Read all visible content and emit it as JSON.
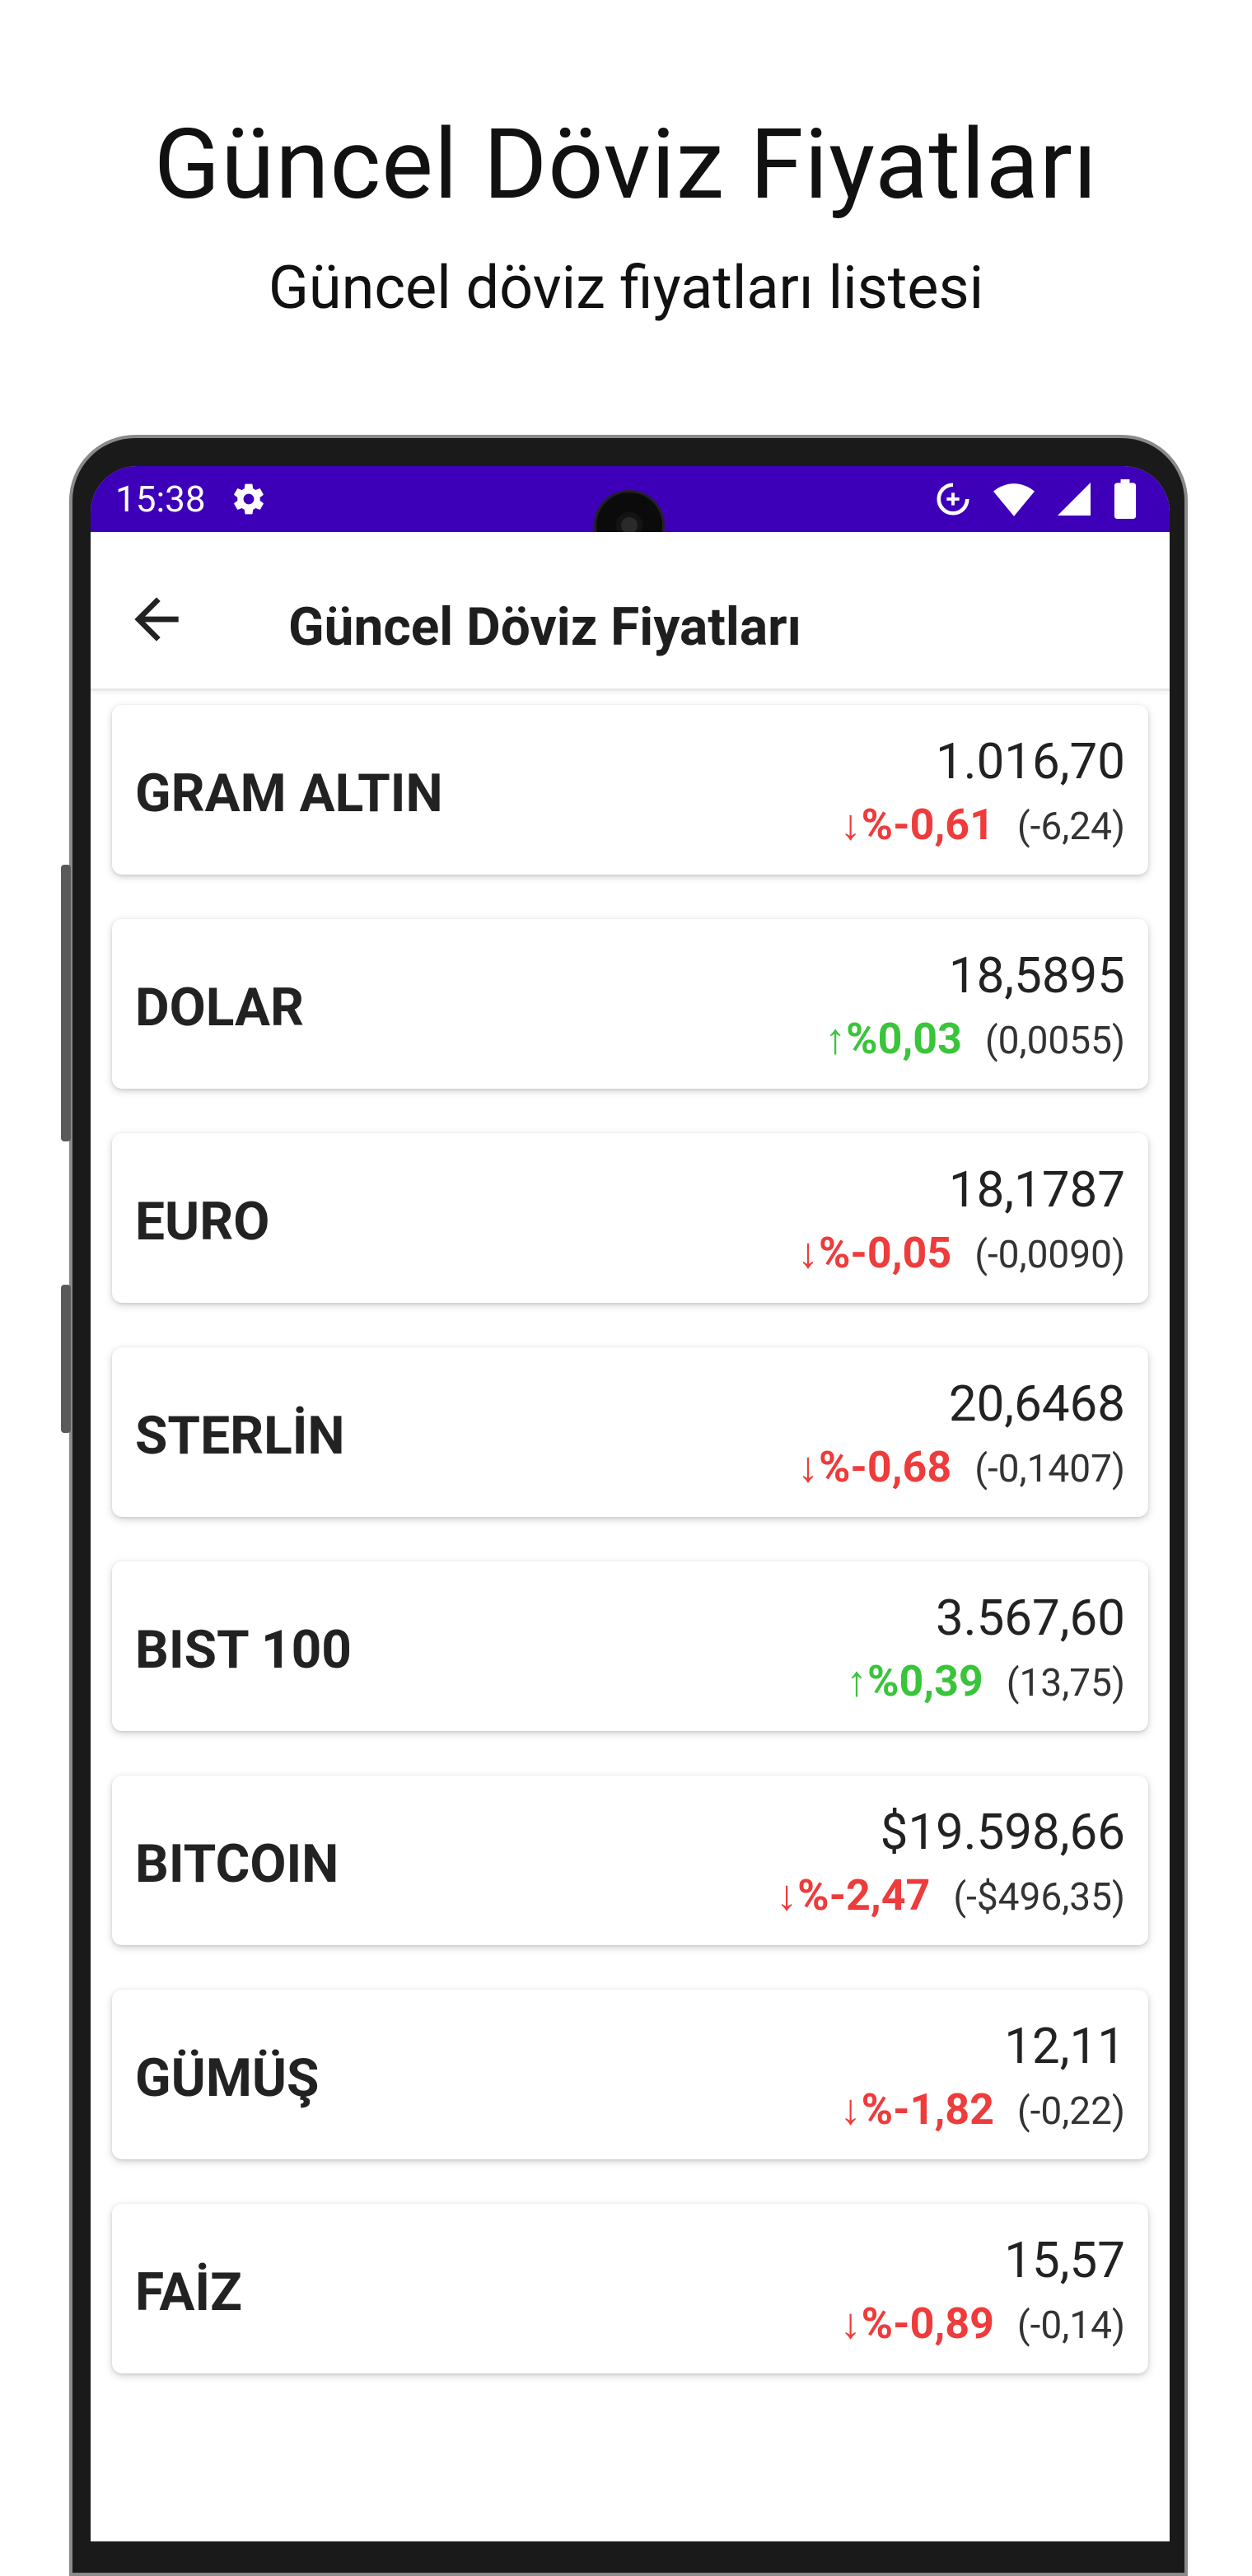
{
  "promo": {
    "title": "Güncel Döviz Fiyatları",
    "subtitle": "Güncel döviz fiyatları listesi"
  },
  "status_bar": {
    "time": "15:38",
    "background_color": "#3d00b8",
    "icons": [
      "gear-icon",
      "data-saver-icon",
      "wifi-icon",
      "signal-icon",
      "battery-icon"
    ]
  },
  "app_bar": {
    "title": "Güncel Döviz Fiyatları",
    "back_icon": "arrow-left-icon"
  },
  "colors": {
    "down": "#ee3b3b",
    "up": "#3ac43a"
  },
  "items": [
    {
      "name": "GRAM ALTIN",
      "price": "1.016,70",
      "direction": "down",
      "pct": "↓%-0,61",
      "abs": "(-6,24)"
    },
    {
      "name": "DOLAR",
      "price": "18,5895",
      "direction": "up",
      "pct": "↑%0,03",
      "abs": "(0,0055)"
    },
    {
      "name": "EURO",
      "price": "18,1787",
      "direction": "down",
      "pct": "↓%-0,05",
      "abs": "(-0,0090)"
    },
    {
      "name": "STERLİN",
      "price": "20,6468",
      "direction": "down",
      "pct": "↓%-0,68",
      "abs": "(-0,1407)"
    },
    {
      "name": "BIST 100",
      "price": "3.567,60",
      "direction": "up",
      "pct": "↑%0,39",
      "abs": "(13,75)"
    },
    {
      "name": "BITCOIN",
      "price": "$19.598,66",
      "direction": "down",
      "pct": "↓%-2,47",
      "abs": "(-$496,35)"
    },
    {
      "name": "GÜMÜŞ",
      "price": "12,11",
      "direction": "down",
      "pct": "↓%-1,82",
      "abs": "(-0,22)"
    },
    {
      "name": "FAİZ",
      "price": "15,57",
      "direction": "down",
      "pct": "↓%-0,89",
      "abs": "(-0,14)"
    }
  ]
}
